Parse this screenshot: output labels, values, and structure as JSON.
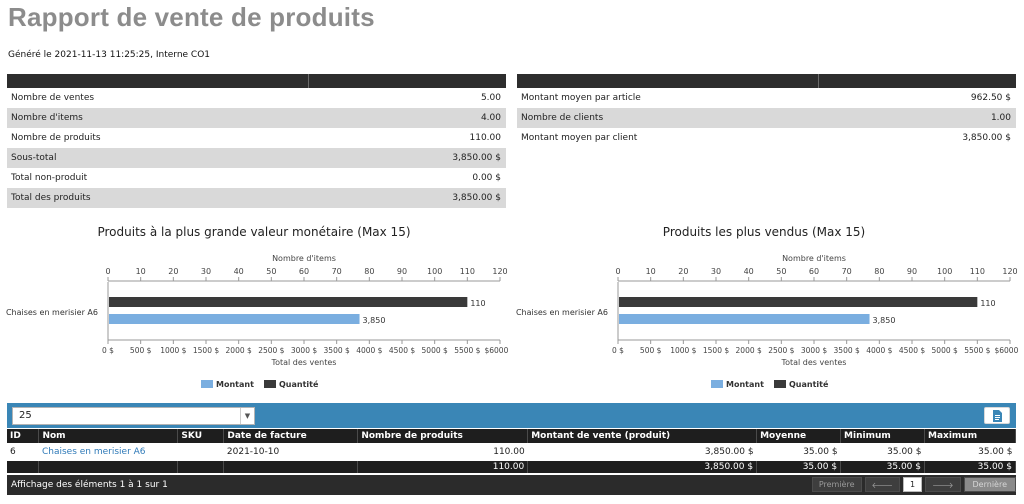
{
  "page": {
    "title": "Rapport de vente de produits",
    "generated": "Généré le 2021-11-13 11:25:25, Interne CO1"
  },
  "stats_left": [
    {
      "label": "Nombre de ventes",
      "value": "5.00"
    },
    {
      "label": "Nombre d'items",
      "value": "4.00"
    },
    {
      "label": "Nombre de produits",
      "value": "110.00"
    },
    {
      "label": "Sous-total",
      "value": "3,850.00 $"
    },
    {
      "label": "Total non-produit",
      "value": "0.00 $"
    },
    {
      "label": "Total des produits",
      "value": "3,850.00 $"
    }
  ],
  "stats_right": [
    {
      "label": "Montant moyen par article",
      "value": "962.50 $"
    },
    {
      "label": "Nombre de clients",
      "value": "1.00"
    },
    {
      "label": "Montant moyen par client",
      "value": "3,850.00 $"
    }
  ],
  "colors": {
    "amount": "#7aaee0",
    "quantity": "#3a3a3a",
    "toolbar": "#3a86b6"
  },
  "chart_data": [
    {
      "type": "bar",
      "orientation": "horizontal",
      "title": "Produits à la plus grande valeur monétaire (Max 15)",
      "categories": [
        "Chaises en merisier A6"
      ],
      "top_axis": {
        "label": "Nombre d'items",
        "ticks": [
          "0",
          "10",
          "20",
          "30",
          "40",
          "50",
          "60",
          "70",
          "80",
          "90",
          "100",
          "110",
          "120"
        ],
        "range": [
          0,
          120
        ]
      },
      "bottom_axis": {
        "label": "Total des ventes",
        "ticks": [
          "0 $",
          "500 $",
          "1000 $",
          "1500 $",
          "2000 $",
          "2500 $",
          "3000 $",
          "3500 $",
          "4000 $",
          "4500 $",
          "5000 $",
          "5500 $",
          "$6000 $"
        ],
        "range": [
          0,
          6000
        ]
      },
      "series": [
        {
          "name": "Quantité",
          "axis": "top",
          "values": [
            110
          ],
          "labels": [
            "110"
          ]
        },
        {
          "name": "Montant",
          "axis": "bottom",
          "values": [
            3850
          ],
          "labels": [
            "3,850"
          ]
        }
      ],
      "legend": [
        "Montant",
        "Quantité"
      ],
      "legend_position": "bottom"
    },
    {
      "type": "bar",
      "orientation": "horizontal",
      "title": "Produits les plus vendus (Max 15)",
      "categories": [
        "Chaises en merisier A6"
      ],
      "top_axis": {
        "label": "Nombre d'items",
        "ticks": [
          "0",
          "10",
          "20",
          "30",
          "40",
          "50",
          "60",
          "70",
          "80",
          "90",
          "100",
          "110",
          "120"
        ],
        "range": [
          0,
          120
        ]
      },
      "bottom_axis": {
        "label": "Total des ventes",
        "ticks": [
          "0 $",
          "500 $",
          "1000 $",
          "1500 $",
          "2000 $",
          "2500 $",
          "3000 $",
          "3500 $",
          "4000 $",
          "4500 $",
          "5000 $",
          "5500 $",
          "$6000 $"
        ],
        "range": [
          0,
          6000
        ]
      },
      "series": [
        {
          "name": "Quantité",
          "axis": "top",
          "values": [
            110
          ],
          "labels": [
            "110"
          ]
        },
        {
          "name": "Montant",
          "axis": "bottom",
          "values": [
            3850
          ],
          "labels": [
            "3,850"
          ]
        }
      ],
      "legend": [
        "Montant",
        "Quantité"
      ],
      "legend_position": "bottom"
    }
  ],
  "toolbar": {
    "page_size": "25",
    "export_icon": "export-file-icon"
  },
  "table": {
    "headers": [
      "ID",
      "Nom",
      "SKU",
      "Date de facture",
      "Nombre de produits",
      "Montant de vente (produit)",
      "Moyenne",
      "Minimum",
      "Maximum"
    ],
    "row": {
      "id": "6",
      "nom": "Chaises en merisier A6",
      "sku": "",
      "date": "2021-10-10",
      "nb": "110.00",
      "montant": "3,850.00 $",
      "moyenne": "35.00 $",
      "minimum": "35.00 $",
      "maximum": "35.00 $"
    },
    "totals": {
      "nb": "110.00",
      "montant": "3,850.00 $",
      "moyenne": "35.00 $",
      "minimum": "35.00 $",
      "maximum": "35.00 $"
    }
  },
  "footer": {
    "info": "Affichage des éléments 1 à 1 sur 1",
    "first": "Première",
    "prev_icon": "arrow-left-icon",
    "page": "1",
    "next_icon": "arrow-right-icon",
    "last": "Dernière"
  }
}
